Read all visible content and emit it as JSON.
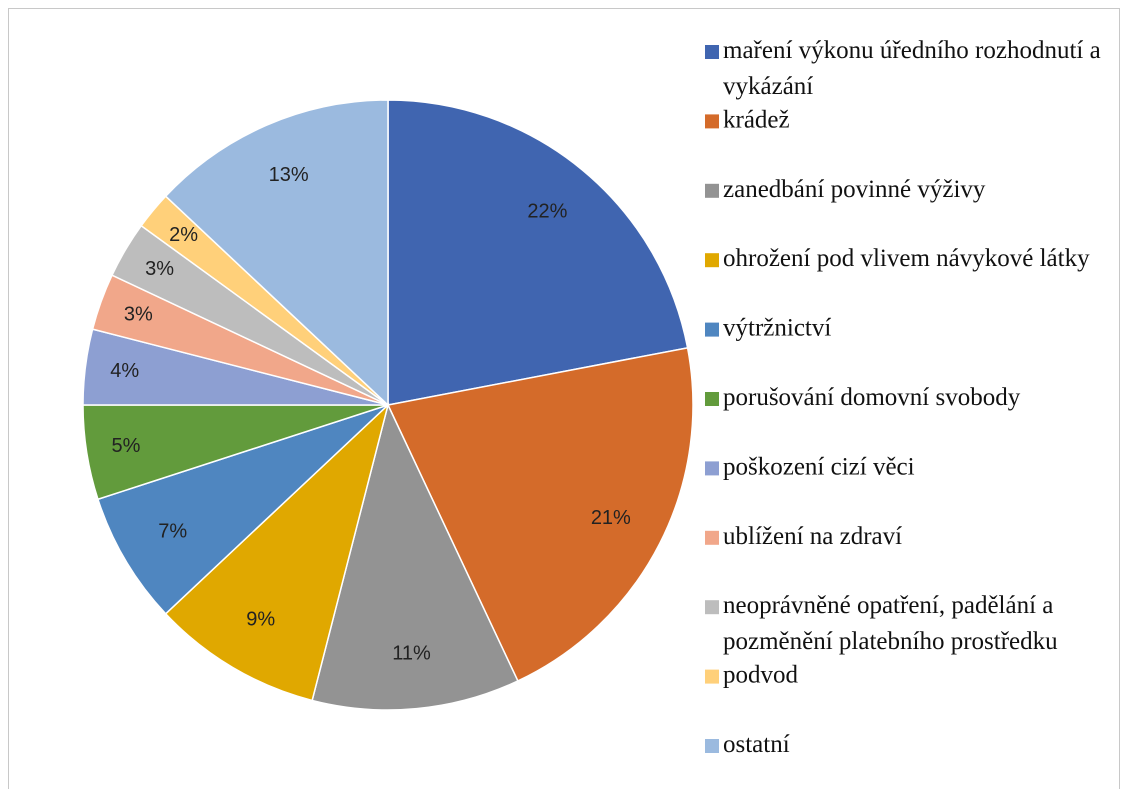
{
  "chart_data": {
    "type": "pie",
    "categories": [
      "maření výkonu úředního rozhodnutí a vykázání",
      "krádež",
      "zanedbání povinné výživy",
      "ohrožení pod vlivem návykové látky",
      "výtržnictví",
      "porušování domovní svobody",
      "poškození cizí věci",
      "ublížení na zdraví",
      "neoprávněné opatření, padělání a pozměnění platebního prostředku",
      "podvod",
      "ostatní"
    ],
    "values": [
      22,
      21,
      11,
      9,
      7,
      5,
      4,
      3,
      3,
      2,
      13
    ],
    "value_labels": [
      "22%",
      "21%",
      "11%",
      "9%",
      "7%",
      "5%",
      "4%",
      "3%",
      "3%",
      "2%",
      "13%"
    ],
    "colors": [
      "#4065b0",
      "#d46b2a",
      "#939393",
      "#e0a800",
      "#4f86c0",
      "#629b3c",
      "#8d9fd2",
      "#f1a78a",
      "#bdbdbd",
      "#ffd07a",
      "#9bbadf"
    ],
    "legend": "right"
  }
}
